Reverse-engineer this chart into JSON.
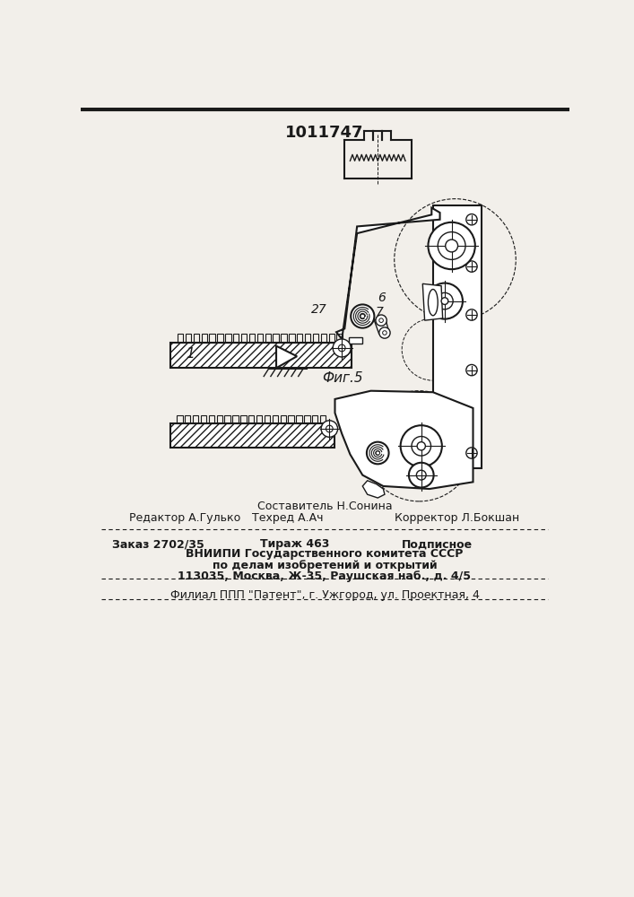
{
  "title": "1011747",
  "fig_label": "Фиг.5",
  "bg_color": "#f2efea",
  "line_color": "#1a1a1a",
  "header_line1": "Составитель Н.Сонина",
  "header_line2_left": "Редактор А.Гулько",
  "header_line2_mid": "Техред А.Ач",
  "header_line2_right": "Корректор Л.Бокшан",
  "footer1_col1": "Заказ 2702/35",
  "footer1_col2": "Тираж 463",
  "footer1_col3": "Подписное",
  "footer2": "ВНИИПИ Государственного комитета СССР",
  "footer3": "по делам изобретений и открытий",
  "footer4": "113035, Москва, Ж-35, Раушская наб., д. 4/5",
  "footer5": "Филиал ППП \"Патент\", г. Ужгород, ул. Проектная, 4",
  "label_1": "1",
  "label_6": "6",
  "label_7": "7",
  "label_27": "27"
}
